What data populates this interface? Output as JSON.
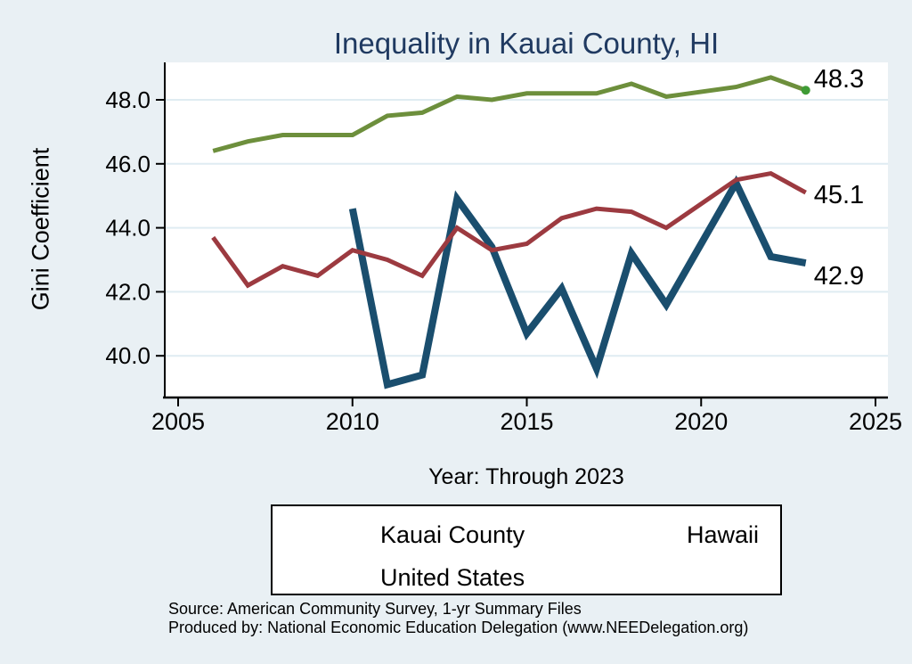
{
  "title": "Inequality in Kauai County, HI",
  "colors": {
    "background": "#e9f0f4",
    "plot_background": "#ffffff",
    "gridline": "#dfecf2",
    "axis": "#000000",
    "title_text": "#203a61",
    "kauai_county": "#1a4e6e",
    "hawaii": "#9c3a40",
    "united_states": "#6d8f3c",
    "us_end_marker": "#3f9b35"
  },
  "chart_data": {
    "type": "line",
    "title": "Inequality in Kauai County, HI",
    "xlabel": "Year: Through 2023",
    "ylabel": "Gini Coefficient",
    "xlim": [
      2005,
      2025
    ],
    "ylim": [
      38.7,
      49.2
    ],
    "x_ticks": [
      2005,
      2010,
      2015,
      2020,
      2025
    ],
    "y_ticks": [
      40.0,
      42.0,
      44.0,
      46.0,
      48.0
    ],
    "grid": "horizontal-only",
    "legend_position": "bottom",
    "series": [
      {
        "name": "Kauai County",
        "color_key": "kauai_county",
        "line_width": 8,
        "end_label": "42.9",
        "end_marker": false,
        "x": [
          2010,
          2011,
          2012,
          2013,
          2014,
          2015,
          2016,
          2017,
          2018,
          2019,
          2021,
          2022,
          2023
        ],
        "values": [
          44.6,
          39.1,
          39.4,
          44.9,
          43.4,
          40.7,
          42.1,
          39.6,
          43.2,
          41.6,
          45.4,
          43.1,
          42.9
        ]
      },
      {
        "name": "Hawaii",
        "color_key": "hawaii",
        "line_width": 5,
        "end_label": "45.1",
        "end_marker": false,
        "x": [
          2006,
          2007,
          2008,
          2009,
          2010,
          2011,
          2012,
          2013,
          2014,
          2015,
          2016,
          2017,
          2018,
          2019,
          2021,
          2022,
          2023
        ],
        "values": [
          43.7,
          42.2,
          42.8,
          42.5,
          43.3,
          43.0,
          42.5,
          44.0,
          43.3,
          43.5,
          44.3,
          44.6,
          44.5,
          44.0,
          45.5,
          45.7,
          45.1
        ]
      },
      {
        "name": "United States",
        "color_key": "united_states",
        "line_width": 5,
        "end_label": "48.3",
        "end_marker": true,
        "x": [
          2006,
          2007,
          2008,
          2009,
          2010,
          2011,
          2012,
          2013,
          2014,
          2015,
          2016,
          2017,
          2018,
          2019,
          2021,
          2022,
          2023
        ],
        "values": [
          46.4,
          46.7,
          46.9,
          46.9,
          46.9,
          47.5,
          47.6,
          48.1,
          48.0,
          48.2,
          48.2,
          48.2,
          48.5,
          48.1,
          48.4,
          48.7,
          48.3
        ]
      }
    ]
  },
  "legend": {
    "items": [
      {
        "label": "Kauai County",
        "color_key": "kauai_county"
      },
      {
        "label": "Hawaii",
        "color_key": "hawaii"
      },
      {
        "label": "United States",
        "color_key": "united_states"
      }
    ]
  },
  "footer": {
    "source_line": "Source: American Community Survey, 1-yr Summary Files",
    "produced_by_line": "Produced by: National Economic Education Delegation (www.NEEDelegation.org)"
  }
}
